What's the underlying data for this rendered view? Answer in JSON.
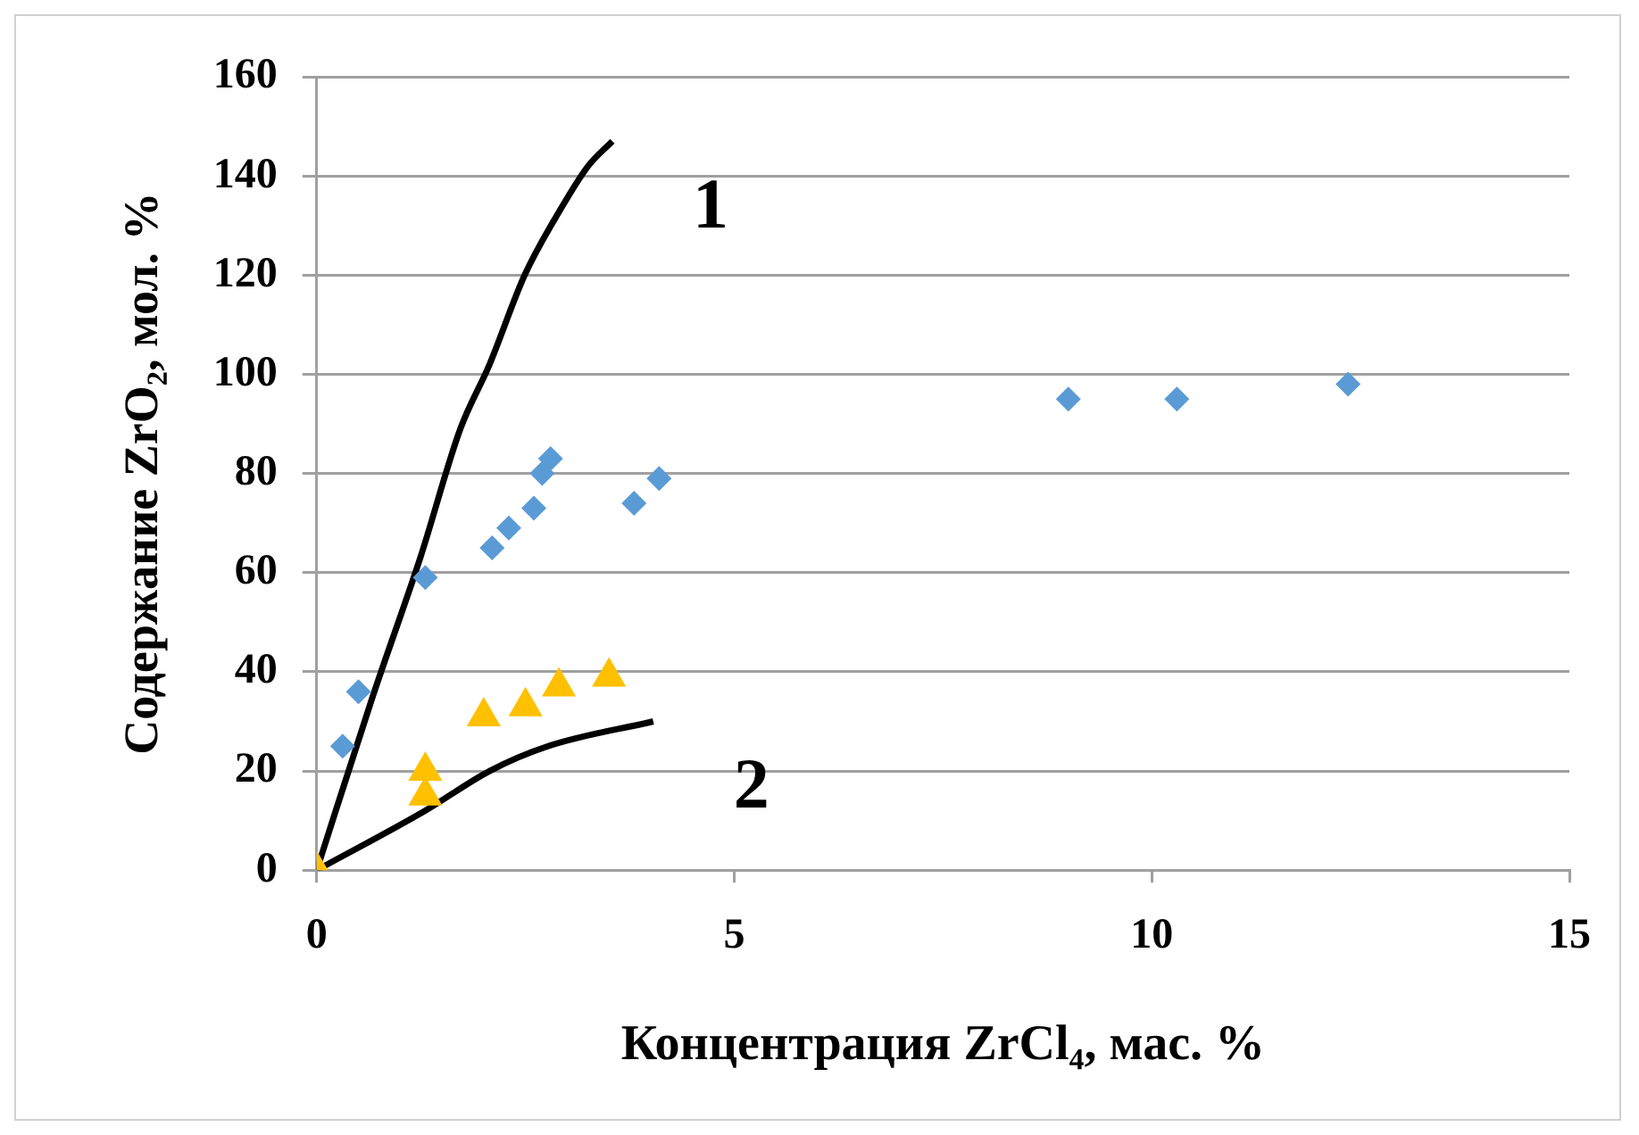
{
  "chart_data": {
    "type": "scatter",
    "xlabel": "Концентрация ZrCl₄, мас. %",
    "ylabel": "Содержание ZrO₂, мол. %",
    "xlim": [
      0,
      15
    ],
    "xticks": [
      0,
      5,
      10,
      15
    ],
    "ylim": [
      0,
      160
    ],
    "yticks": [
      0,
      20,
      40,
      60,
      80,
      100,
      120,
      140,
      160
    ],
    "grid": "y",
    "legend": false,
    "series": [
      {
        "type": "scatter",
        "marker": "diamond",
        "color": "#5b9bd5",
        "x": [
          0.31,
          0.5,
          1.3,
          2.1,
          2.3,
          2.6,
          2.7,
          2.8,
          3.8,
          4.1,
          9.0,
          10.3,
          12.35
        ],
        "values": [
          25,
          36,
          59,
          65,
          69,
          73,
          80,
          83,
          74,
          79,
          95,
          95,
          98
        ]
      },
      {
        "type": "scatter",
        "marker": "triangle",
        "color": "#ffc000",
        "x": [
          0,
          1.3,
          1.3,
          2.0,
          2.5,
          2.9,
          3.5
        ],
        "values": [
          0,
          15,
          20,
          31,
          33,
          37,
          39
        ]
      },
      {
        "type": "line",
        "name": "1",
        "marker": "none",
        "color": "#000000",
        "x": [
          0,
          0.67,
          1.24,
          1.72,
          2.07,
          2.49,
          2.91,
          3.25,
          3.54
        ],
        "values": [
          0,
          35,
          63,
          89,
          102,
          120,
          133,
          142,
          147
        ]
      },
      {
        "type": "line",
        "name": "2",
        "marker": "none",
        "color": "#000000",
        "x": [
          0,
          1.3,
          2.07,
          2.77,
          4.03
        ],
        "values": [
          0,
          12,
          20,
          25,
          30
        ]
      }
    ]
  }
}
